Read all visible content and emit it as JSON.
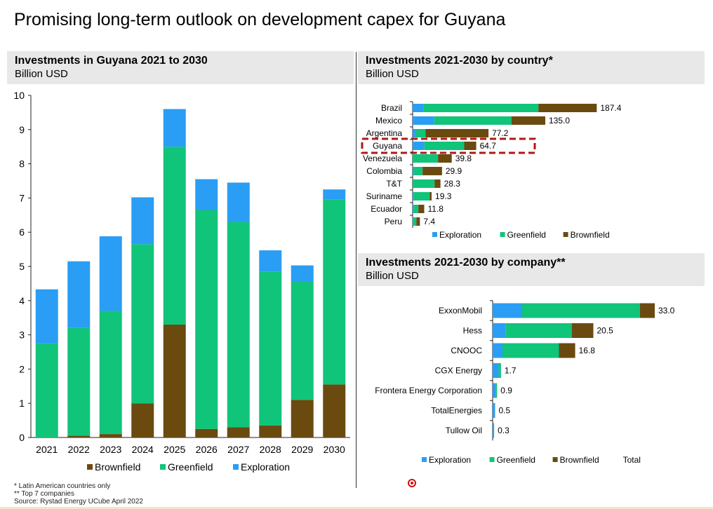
{
  "title": "Promising long-term outlook on development capex for Guyana",
  "colors": {
    "Exploration": "#2a9df4",
    "Greenfield": "#10c47a",
    "Brownfield": "#6b4a10",
    "highlight": "#b01818"
  },
  "panels": {
    "left": {
      "heading": "Investments in Guyana 2021 to 2030",
      "unit": "Billion USD"
    },
    "country": {
      "heading": "Investments 2021-2030 by country*",
      "unit": "Billion USD"
    },
    "company": {
      "heading": "Investments 2021-2030 by company**",
      "unit": "Billion USD"
    }
  },
  "footnotes": [
    "* Latin American countries only",
    "** Top 7 companies",
    "Source: Rystad Energy UCube April 2022"
  ],
  "chart_data": [
    {
      "type": "bar",
      "stacked": true,
      "title": "Investments in Guyana 2021 to 2030",
      "ylabel": "Billion USD",
      "categories": [
        "2021",
        "2022",
        "2023",
        "2024",
        "2025",
        "2026",
        "2027",
        "2028",
        "2029",
        "2030"
      ],
      "ylim": [
        0,
        10
      ],
      "yticks": [
        0,
        1,
        2,
        3,
        4,
        5,
        6,
        7,
        8,
        9,
        10
      ],
      "legend": [
        "Brownfield",
        "Greenfield",
        "Exploration"
      ],
      "legend_position": "bottom",
      "series": [
        {
          "name": "Brownfield",
          "values": [
            0,
            0.05,
            0.1,
            1.0,
            3.3,
            0.25,
            0.3,
            0.35,
            1.1,
            1.55
          ]
        },
        {
          "name": "Greenfield",
          "values": [
            2.75,
            3.15,
            3.6,
            4.65,
            5.2,
            6.4,
            6.0,
            4.5,
            3.45,
            5.4
          ]
        },
        {
          "name": "Exploration",
          "values": [
            1.58,
            1.95,
            2.18,
            1.37,
            1.1,
            0.9,
            1.15,
            0.62,
            0.48,
            0.3
          ]
        }
      ]
    },
    {
      "type": "bar",
      "orientation": "horizontal",
      "stacked": true,
      "title": "Investments 2021-2030 by country*",
      "xlabel": "Billion USD",
      "categories": [
        "Brazil",
        "Mexico",
        "Argentina",
        "Guyana",
        "Venezuela",
        "Colombia",
        "T&T",
        "Suriname",
        "Ecuador",
        "Peru"
      ],
      "highlight": "Guyana",
      "legend": [
        "Exploration",
        "Greenfield",
        "Brownfield"
      ],
      "legend_position": "bottom",
      "series": [
        {
          "name": "Exploration",
          "values": [
            11.0,
            22.0,
            3.5,
            12.0,
            0.0,
            1.5,
            0.0,
            1.0,
            1.0,
            0.5
          ]
        },
        {
          "name": "Greenfield",
          "values": [
            117.0,
            78.5,
            9.7,
            40.5,
            25.8,
            8.6,
            22.3,
            16.3,
            4.8,
            3.3
          ]
        },
        {
          "name": "Brownfield",
          "values": [
            59.4,
            34.5,
            64.0,
            12.2,
            14.0,
            19.8,
            6.0,
            2.0,
            6.0,
            3.6
          ]
        }
      ],
      "totals": [
        "187.4",
        "135.0",
        "77.2",
        "64.7",
        "39.8",
        "29.9",
        "28.3",
        "19.3",
        "11.8",
        "7.4"
      ]
    },
    {
      "type": "bar",
      "orientation": "horizontal",
      "stacked": true,
      "title": "Investments 2021-2030 by company**",
      "xlabel": "Billion USD",
      "categories": [
        "ExxonMobil",
        "Hess",
        "CNOOC",
        "CGX Energy",
        "Frontera Energy Corporation",
        "TotalEnergies",
        "Tullow Oil"
      ],
      "legend": [
        "Exploration",
        "Greenfield",
        "Brownfield",
        "Total"
      ],
      "legend_position": "bottom",
      "series": [
        {
          "name": "Exploration",
          "values": [
            6.0,
            2.6,
            2.0,
            1.2,
            0.6,
            0.5,
            0.3
          ]
        },
        {
          "name": "Greenfield",
          "values": [
            24.0,
            13.5,
            11.5,
            0.5,
            0.3,
            0.0,
            0.0
          ]
        },
        {
          "name": "Brownfield",
          "values": [
            3.0,
            4.4,
            3.3,
            0.0,
            0.0,
            0.0,
            0.0
          ]
        }
      ],
      "totals": [
        "33.0",
        "20.5",
        "16.8",
        "1.7",
        "0.9",
        "0.5",
        "0.3"
      ]
    }
  ]
}
